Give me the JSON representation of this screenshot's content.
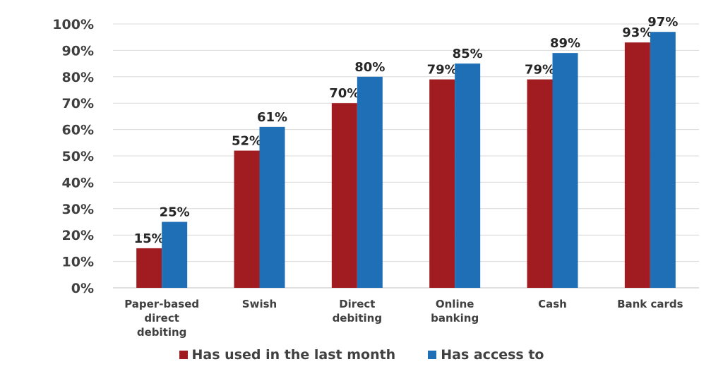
{
  "chart_data": {
    "type": "bar",
    "categories": [
      "Paper-based direct debiting",
      "Swish",
      "Direct debiting",
      "Online banking",
      "Cash",
      "Bank cards"
    ],
    "category_lines": [
      [
        "Paper-based",
        "direct",
        "debiting"
      ],
      [
        "Swish"
      ],
      [
        "Direct",
        "debiting"
      ],
      [
        "Online",
        "banking"
      ],
      [
        "Cash"
      ],
      [
        "Bank cards"
      ]
    ],
    "series": [
      {
        "name": "Has used in the last month",
        "color": "#A01C20",
        "values": [
          15,
          52,
          70,
          79,
          79,
          93
        ]
      },
      {
        "name": "Has access to",
        "color": "#1F6FB7",
        "values": [
          25,
          61,
          80,
          85,
          89,
          97
        ]
      }
    ],
    "value_suffix": "%",
    "ylim": [
      0,
      100
    ],
    "yticks": [
      0,
      10,
      20,
      30,
      40,
      50,
      60,
      70,
      80,
      90,
      100
    ],
    "ytick_labels": [
      "0%",
      "10%",
      "20%",
      "30%",
      "40%",
      "50%",
      "60%",
      "70%",
      "80%",
      "90%",
      "100%"
    ],
    "grid": true,
    "legend_position": "bottom",
    "title": "",
    "xlabel": "",
    "ylabel": ""
  }
}
